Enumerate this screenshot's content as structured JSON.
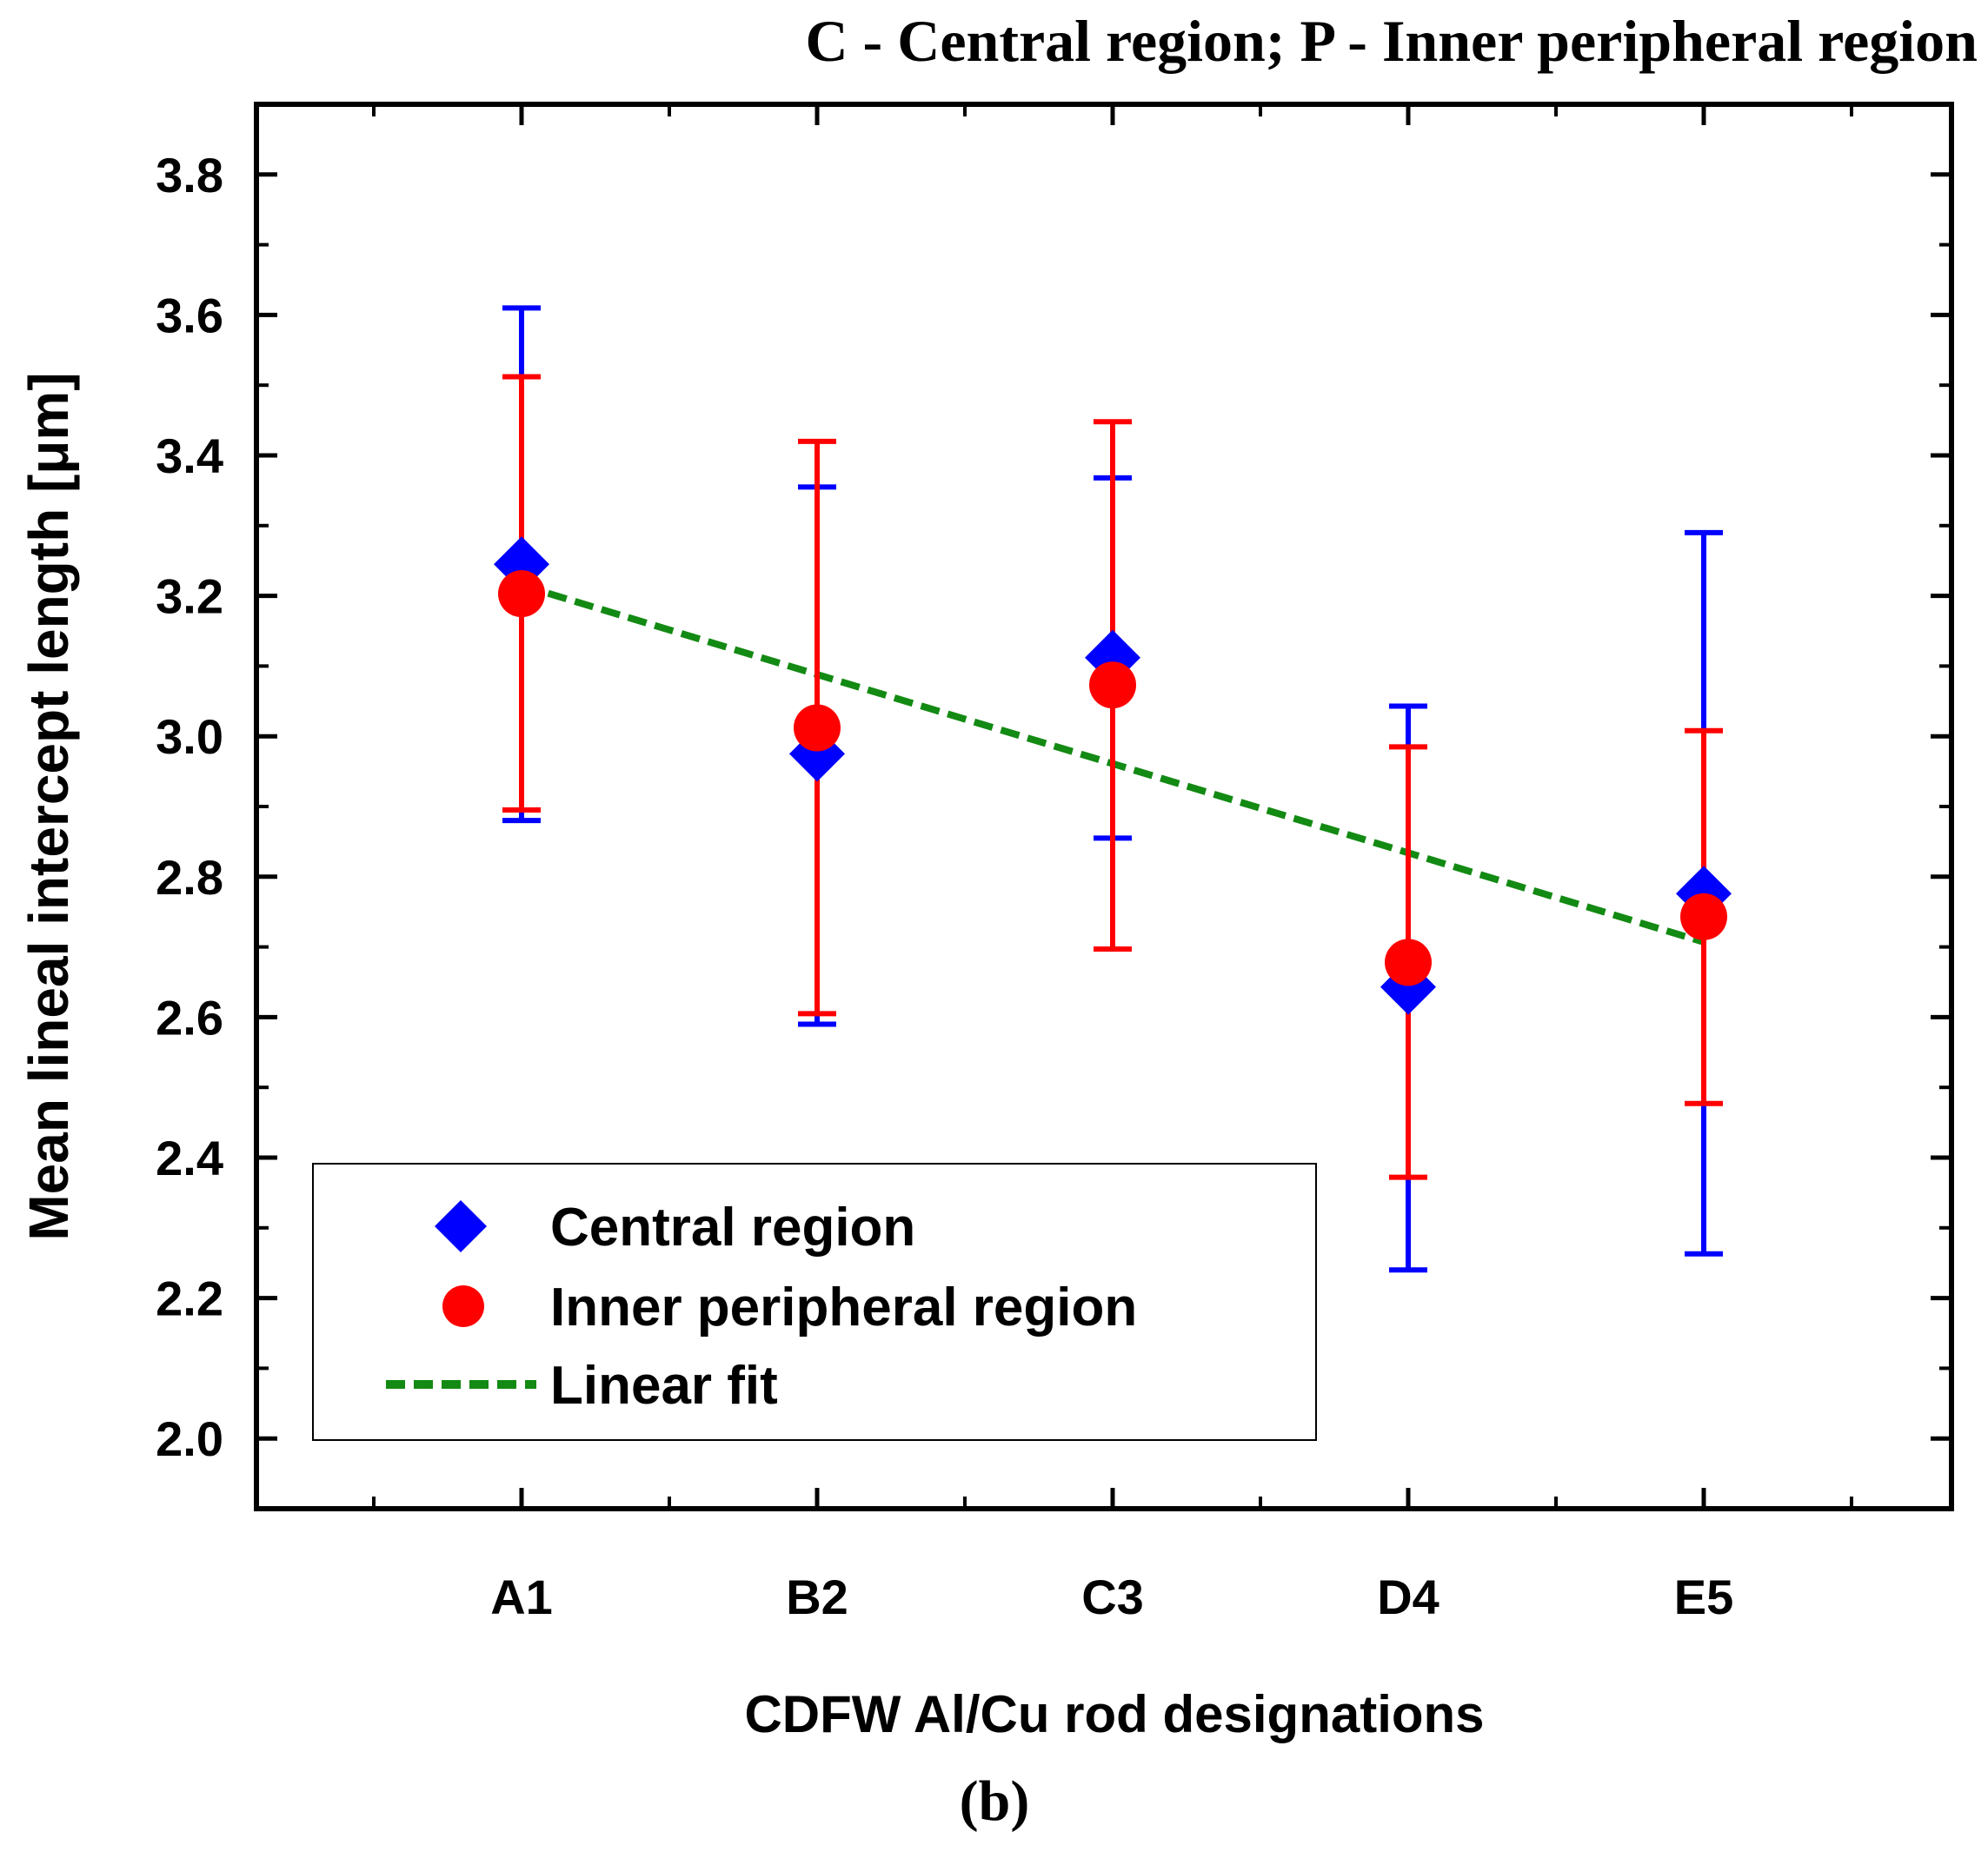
{
  "chart_data": {
    "type": "scatter",
    "title": "C - Central region; P - Inner peripheral region",
    "caption": "(b)",
    "xlabel": "CDFW Al/Cu rod designations",
    "ylabel": "Mean lineal intercept length [μm]",
    "categories": [
      "A1",
      "B2",
      "C3",
      "D4",
      "E5"
    ],
    "ylim": [
      1.9,
      3.9
    ],
    "yticks": [
      "2.0",
      "2.2",
      "2.4",
      "2.6",
      "2.8",
      "3.0",
      "3.2",
      "3.4",
      "3.6",
      "3.8"
    ],
    "series": [
      {
        "name": "Central region",
        "marker": "diamond",
        "color": "#0000ff",
        "values": [
          3.245,
          2.975,
          3.112,
          2.643,
          2.776
        ],
        "err_low": [
          2.88,
          2.59,
          2.855,
          2.24,
          2.263
        ],
        "err_high": [
          3.61,
          3.355,
          3.368,
          3.043,
          3.29
        ]
      },
      {
        "name": "Inner peripheral region",
        "marker": "circle",
        "color": "#ff0000",
        "values": [
          3.203,
          3.012,
          3.073,
          2.678,
          2.743
        ],
        "err_low": [
          2.895,
          2.605,
          2.697,
          2.372,
          2.477
        ],
        "err_high": [
          3.512,
          3.42,
          3.448,
          2.985,
          3.008
        ]
      },
      {
        "name": "Linear fit",
        "marker": "dashed-line",
        "color": "#138a13",
        "values": [
          3.215,
          3.088,
          2.961,
          2.834,
          2.707
        ]
      }
    ],
    "legend": "bottom-left"
  }
}
